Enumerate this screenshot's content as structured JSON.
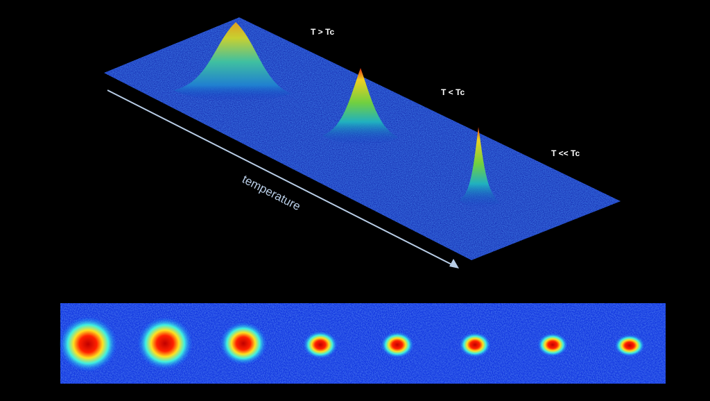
{
  "plot": {
    "peak_labels": [
      "T > Tc",
      "T < Tc",
      "T << Tc"
    ],
    "axis_label": "temperature"
  }
}
